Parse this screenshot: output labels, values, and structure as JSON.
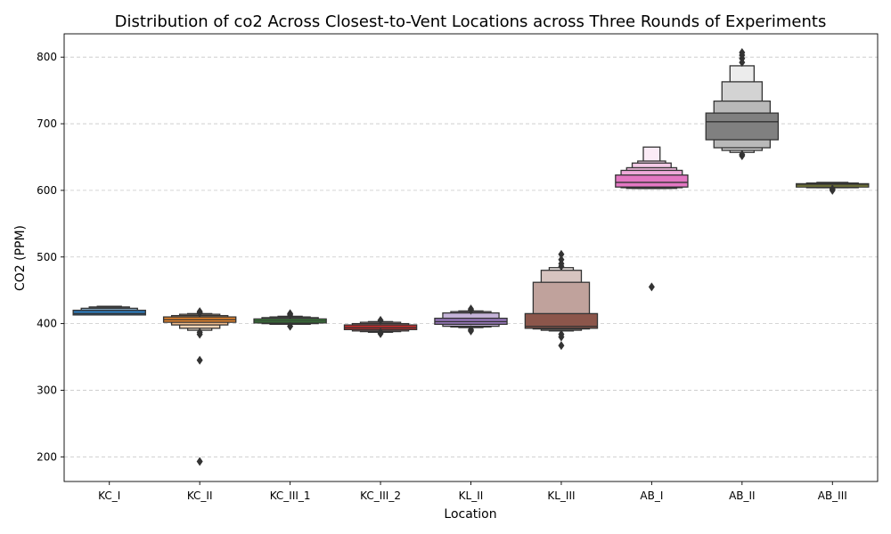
{
  "chart_data": {
    "type": "boxen",
    "title": "Distribution of co2 Across Closest-to-Vent Locations across Three Rounds of Experiments",
    "xlabel": "Location",
    "ylabel": "CO2 (PPM)",
    "ylim": [
      163,
      835
    ],
    "yticks": [
      200,
      300,
      400,
      500,
      600,
      700,
      800
    ],
    "grid": "y-dashed",
    "categories": [
      "KC_I",
      "KC_II",
      "KC_III_1",
      "KC_III_2",
      "KL_II",
      "KL_III",
      "AB_I",
      "AB_II",
      "AB_III"
    ],
    "series": [
      {
        "category": "KC_I",
        "color": "#2e76b2",
        "median": 415,
        "boxes": [
          [
            413,
            420
          ],
          [
            420,
            423
          ],
          [
            423,
            425
          ],
          [
            425,
            426
          ]
        ],
        "outliers": []
      },
      {
        "category": "KC_II",
        "color": "#e8852b",
        "median": 406,
        "boxes": [
          [
            402,
            410
          ],
          [
            398,
            412
          ],
          [
            393,
            414
          ],
          [
            390,
            415
          ]
        ],
        "outliers": [
          384,
          387,
          416,
          418,
          345,
          193
        ]
      },
      {
        "category": "KC_III_1",
        "color": "#3b8e3b",
        "median": 404,
        "boxes": [
          [
            401,
            407
          ],
          [
            400,
            409
          ],
          [
            399,
            410
          ],
          [
            399,
            411
          ]
        ],
        "outliers": [
          396,
          413,
          415
        ]
      },
      {
        "category": "KC_III_2",
        "color": "#c62d2d",
        "median": 394,
        "boxes": [
          [
            391,
            398
          ],
          [
            389,
            400
          ],
          [
            388,
            402
          ],
          [
            387,
            403
          ]
        ],
        "outliers": [
          385,
          387,
          405
        ]
      },
      {
        "category": "KL_II",
        "color": "#9575b9",
        "median": 403,
        "boxes": [
          [
            399,
            408
          ],
          [
            396,
            416
          ],
          [
            395,
            418
          ],
          [
            394,
            419
          ]
        ],
        "outliers": [
          389,
          391,
          420,
          422
        ]
      },
      {
        "category": "KL_III",
        "color": "#8c564b",
        "median": 396,
        "boxes": [
          [
            393,
            415
          ],
          [
            392,
            462
          ],
          [
            390,
            480
          ],
          [
            389,
            484
          ]
        ],
        "outliers": [
          384,
          380,
          367,
          486,
          490,
          496,
          504
        ]
      },
      {
        "category": "AB_I",
        "color": "#e377c2",
        "median": 612,
        "boxes": [
          [
            605,
            623
          ],
          [
            604,
            630
          ],
          [
            603,
            634
          ],
          [
            603,
            641
          ],
          [
            603,
            644
          ],
          [
            603,
            665
          ]
        ],
        "outliers": [
          455
        ]
      },
      {
        "category": "AB_II",
        "color": "#808080",
        "median": 703,
        "boxes": [
          [
            676,
            716
          ],
          [
            664,
            734
          ],
          [
            660,
            763
          ],
          [
            657,
            787
          ]
        ],
        "outliers": [
          652,
          654,
          792,
          798,
          803,
          807
        ]
      },
      {
        "category": "AB_III",
        "color": "#9ca13a",
        "median": 608,
        "boxes": [
          [
            605,
            610
          ],
          [
            604,
            611
          ],
          [
            604,
            612
          ]
        ],
        "outliers": [
          600,
          602
        ]
      }
    ]
  }
}
